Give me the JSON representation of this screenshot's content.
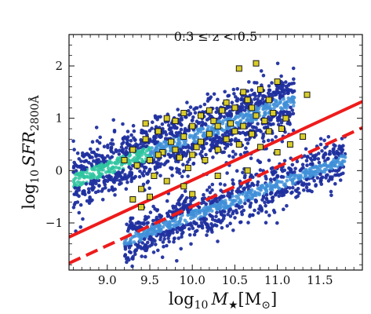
{
  "chart_data": {
    "type": "scatter",
    "annotation": "0.3 ≤ z < 0.5",
    "xlabel": {
      "prefix": "log",
      "sub": "10",
      "var": "M",
      "var_sub": "★",
      "unit": "[M",
      "unit_sub": "⊙",
      "unit_end": "]"
    },
    "ylabel": {
      "prefix": "log",
      "sub": "10",
      "var": "SFR",
      "var_sub": "2800Å"
    },
    "xlim": [
      8.55,
      12.0
    ],
    "ylim": [
      -1.9,
      2.6
    ],
    "xticks": [
      9.0,
      9.5,
      10.0,
      10.5,
      11.0,
      11.5
    ],
    "xtick_labels": [
      "9.0",
      "9.5",
      "10.0",
      "10.5",
      "11.0",
      "11.5"
    ],
    "yticks": [
      -1,
      0,
      1,
      2
    ],
    "ytick_labels": [
      "−1",
      "0",
      "1",
      "2"
    ],
    "grid": false,
    "colors": {
      "field_points": "#1f2f9f",
      "density_high": "#2ec4a0",
      "density_mid": "#3f8fd8",
      "highlight_fill": "#d8cc2a",
      "highlight_edge": "#1a1a1a",
      "lines": "#ee1b1b"
    },
    "density_regions": [
      {
        "name": "star-forming",
        "x_range": [
          8.6,
          11.2
        ],
        "y_at_start": -0.2,
        "slope": 0.6,
        "spread": 0.28
      },
      {
        "name": "quiescent",
        "x_range": [
          9.2,
          11.8
        ],
        "y_at_start": -1.35,
        "slope": 0.6,
        "spread": 0.22
      }
    ],
    "series": [
      {
        "type": "scatter",
        "marker": "square",
        "points": [
          [
            9.3,
            -0.55
          ],
          [
            9.35,
            0.1
          ],
          [
            9.4,
            -0.35
          ],
          [
            9.45,
            0.6
          ],
          [
            9.5,
            0.2
          ],
          [
            9.55,
            -0.1
          ],
          [
            9.6,
            0.75
          ],
          [
            9.65,
            0.35
          ],
          [
            9.7,
            -0.2
          ],
          [
            9.75,
            0.55
          ],
          [
            9.8,
            0.95
          ],
          [
            9.85,
            0.25
          ],
          [
            9.9,
            0.65
          ],
          [
            9.95,
            0.05
          ],
          [
            10.0,
            0.85
          ],
          [
            10.05,
            0.45
          ],
          [
            10.1,
            1.05
          ],
          [
            10.15,
            0.2
          ],
          [
            10.2,
            0.7
          ],
          [
            10.25,
            0.95
          ],
          [
            10.3,
            0.4
          ],
          [
            10.35,
            1.15
          ],
          [
            10.4,
            0.6
          ],
          [
            10.45,
            0.9
          ],
          [
            10.5,
            1.2
          ],
          [
            10.55,
            0.5
          ],
          [
            10.6,
            0.85
          ],
          [
            10.65,
            1.35
          ],
          [
            10.7,
            0.7
          ],
          [
            10.75,
            1.05
          ],
          [
            10.8,
            0.45
          ],
          [
            10.85,
            0.95
          ],
          [
            10.9,
            0.75
          ],
          [
            10.95,
            1.1
          ],
          [
            11.0,
            0.35
          ],
          [
            11.05,
            0.8
          ],
          [
            11.15,
            0.5
          ],
          [
            11.3,
            0.65
          ],
          [
            9.3,
            0.4
          ],
          [
            9.45,
            0.9
          ],
          [
            9.6,
            0.3
          ],
          [
            9.7,
            1.0
          ],
          [
            9.8,
            0.4
          ],
          [
            9.9,
            1.1
          ],
          [
            10.0,
            0.3
          ],
          [
            10.1,
            0.55
          ],
          [
            10.2,
            1.15
          ],
          [
            10.3,
            0.85
          ],
          [
            10.4,
            1.3
          ],
          [
            10.5,
            0.75
          ],
          [
            10.6,
            1.5
          ],
          [
            10.7,
            1.2
          ],
          [
            10.8,
            1.55
          ],
          [
            10.9,
            1.35
          ],
          [
            10.75,
            2.05
          ],
          [
            10.55,
            1.95
          ],
          [
            11.0,
            1.7
          ],
          [
            11.35,
            1.45
          ],
          [
            10.65,
            0.0
          ],
          [
            10.3,
            -0.1
          ],
          [
            9.5,
            -0.5
          ],
          [
            9.9,
            -0.3
          ],
          [
            10.0,
            -0.45
          ],
          [
            9.2,
            0.2
          ],
          [
            9.4,
            -0.7
          ],
          [
            11.1,
            1.0
          ]
        ]
      },
      {
        "type": "line",
        "style": "solid",
        "points": [
          [
            8.55,
            -1.27
          ],
          [
            12.0,
            1.32
          ]
        ]
      },
      {
        "type": "line",
        "style": "dashed",
        "points": [
          [
            8.55,
            -1.77
          ],
          [
            12.0,
            0.82
          ]
        ]
      }
    ]
  }
}
